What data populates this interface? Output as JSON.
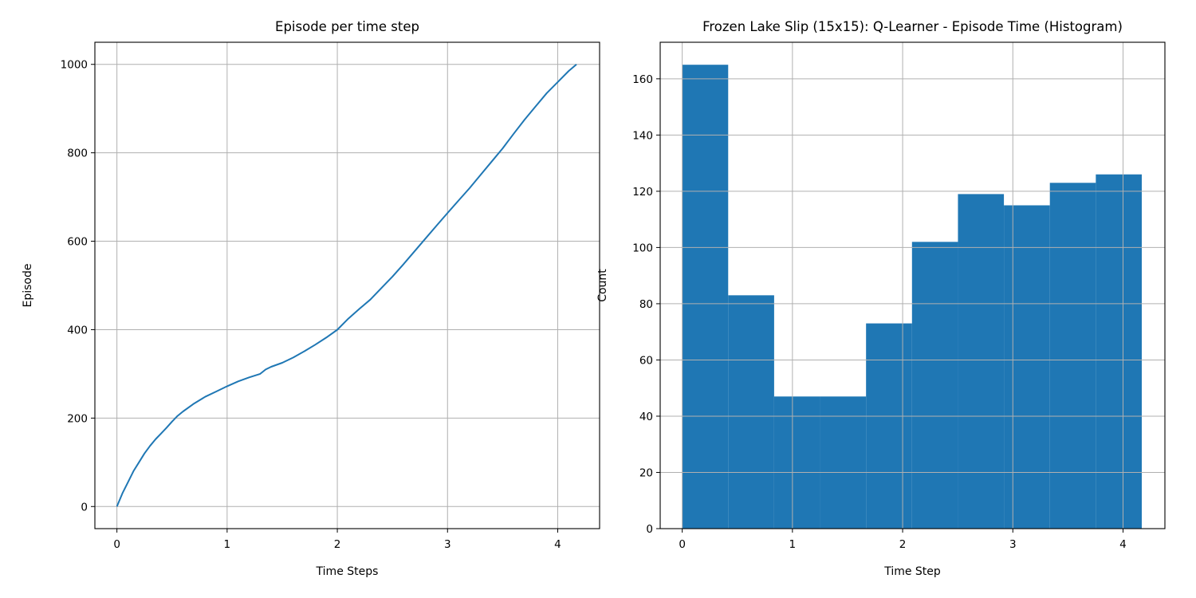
{
  "chart_data": [
    {
      "type": "line",
      "title": "Episode per time step",
      "xlabel": "Time Steps",
      "ylabel": "Episode",
      "xlim": [
        -0.2,
        4.38
      ],
      "ylim": [
        -50,
        1050
      ],
      "xticks": [
        0,
        1,
        2,
        3,
        4
      ],
      "yticks": [
        0,
        200,
        400,
        600,
        800,
        1000
      ],
      "grid": true,
      "color": "#1f77b4",
      "series": [
        {
          "x": [
            0,
            0.05,
            0.1,
            0.15,
            0.2,
            0.25,
            0.3,
            0.35,
            0.4,
            0.45,
            0.5,
            0.55,
            0.6,
            0.7,
            0.8,
            0.9,
            1.0,
            1.1,
            1.2,
            1.3,
            1.35,
            1.4,
            1.5,
            1.6,
            1.7,
            1.8,
            1.9,
            2.0,
            2.1,
            2.2,
            2.3,
            2.4,
            2.5,
            2.6,
            2.7,
            2.8,
            2.9,
            3.0,
            3.1,
            3.2,
            3.3,
            3.4,
            3.5,
            3.6,
            3.7,
            3.8,
            3.9,
            4.0,
            4.1,
            4.17
          ],
          "y": [
            0,
            30,
            55,
            80,
            100,
            120,
            137,
            152,
            165,
            178,
            192,
            205,
            215,
            233,
            248,
            260,
            272,
            283,
            292,
            300,
            310,
            316,
            325,
            337,
            351,
            366,
            382,
            400,
            425,
            447,
            468,
            494,
            520,
            548,
            577,
            606,
            635,
            664,
            692,
            720,
            750,
            780,
            810,
            843,
            875,
            905,
            935,
            960,
            985,
            1000
          ]
        }
      ]
    },
    {
      "type": "bar",
      "title": "Frozen Lake Slip (15x15): Q-Learner - Episode Time (Histogram)",
      "xlabel": "Time Step",
      "ylabel": "Count",
      "xlim": [
        -0.2,
        4.38
      ],
      "ylim": [
        0,
        173
      ],
      "xticks": [
        0,
        1,
        2,
        3,
        4
      ],
      "yticks": [
        0,
        20,
        40,
        60,
        80,
        100,
        120,
        140,
        160
      ],
      "grid": true,
      "color": "#1f77b4",
      "bin_edges": [
        0,
        0.417,
        0.834,
        1.251,
        1.668,
        2.085,
        2.502,
        2.919,
        3.336,
        3.753,
        4.17
      ],
      "values": [
        165,
        83,
        47,
        47,
        73,
        102,
        119,
        115,
        123,
        126
      ]
    }
  ]
}
